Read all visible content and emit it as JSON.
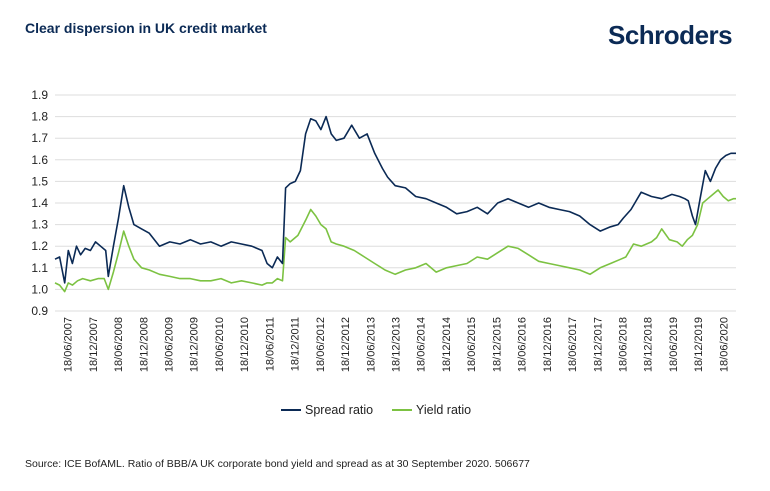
{
  "title": "Clear dispersion in UK credit market",
  "brand": "Schroders",
  "source": "Source: ICE BofAML. Ratio of BBB/A UK corporate bond yield and spread as at 30 September 2020. 506677",
  "colors": {
    "spread": "#0b2a55",
    "yield": "#7cc242",
    "grid": "#dddddd",
    "text": "#222222"
  },
  "chart_data": {
    "type": "line",
    "title": "Clear dispersion in UK credit market",
    "xlabel": "",
    "ylabel": "",
    "ylim": [
      0.9,
      1.9
    ],
    "yticks": [
      "1.9",
      "1.8",
      "1.7",
      "1.6",
      "1.5",
      "1.4",
      "1.3",
      "1.2",
      "1.1",
      "1.0",
      "0.9"
    ],
    "xlim": [
      2007.46,
      2020.75
    ],
    "xtick_labels": [
      "18/06/2007",
      "18/12/2007",
      "18/06/2008",
      "18/12/2008",
      "18/06/2009",
      "18/12/2009",
      "18/06/2010",
      "18/12/2010",
      "18/06/2011",
      "18/12/2011",
      "18/06/2012",
      "18/12/2012",
      "18/06/2013",
      "18/12/2013",
      "18/06/2014",
      "18/12/2014",
      "18/06/2015",
      "18/12/2015",
      "18/06/2016",
      "18/12/2016",
      "18/06/2017",
      "18/12/2017",
      "18/06/2018",
      "18/12/2018",
      "18/06/2019",
      "18/12/2019",
      "18/06/2020"
    ],
    "grid": true,
    "legend_position": "bottom-center",
    "series": [
      {
        "name": "Spread ratio",
        "x": [
          2007.46,
          2007.55,
          2007.65,
          2007.72,
          2007.8,
          2007.88,
          2007.96,
          2008.05,
          2008.15,
          2008.25,
          2008.35,
          2008.45,
          2008.5,
          2008.6,
          2008.7,
          2008.8,
          2008.9,
          2009.0,
          2009.15,
          2009.3,
          2009.5,
          2009.7,
          2009.9,
          2010.1,
          2010.3,
          2010.5,
          2010.7,
          2010.9,
          2011.1,
          2011.3,
          2011.5,
          2011.6,
          2011.7,
          2011.8,
          2011.9,
          2011.96,
          2012.05,
          2012.15,
          2012.25,
          2012.35,
          2012.45,
          2012.55,
          2012.65,
          2012.75,
          2012.85,
          2012.95,
          2013.1,
          2013.25,
          2013.4,
          2013.55,
          2013.7,
          2013.85,
          2013.95,
          2014.1,
          2014.3,
          2014.5,
          2014.7,
          2014.9,
          2015.1,
          2015.3,
          2015.5,
          2015.7,
          2015.9,
          2016.1,
          2016.3,
          2016.5,
          2016.7,
          2016.9,
          2017.1,
          2017.3,
          2017.5,
          2017.7,
          2017.9,
          2018.1,
          2018.3,
          2018.45,
          2018.55,
          2018.7,
          2018.9,
          2019.1,
          2019.3,
          2019.5,
          2019.65,
          2019.75,
          2019.82,
          2019.9,
          2019.96,
          2020.05,
          2020.15,
          2020.25,
          2020.35,
          2020.45,
          2020.55,
          2020.65,
          2020.75
        ],
        "values": [
          1.14,
          1.15,
          1.03,
          1.18,
          1.12,
          1.2,
          1.16,
          1.19,
          1.18,
          1.22,
          1.2,
          1.18,
          1.06,
          1.2,
          1.33,
          1.48,
          1.38,
          1.3,
          1.28,
          1.26,
          1.2,
          1.22,
          1.21,
          1.23,
          1.21,
          1.22,
          1.2,
          1.22,
          1.21,
          1.2,
          1.18,
          1.12,
          1.1,
          1.15,
          1.12,
          1.47,
          1.49,
          1.5,
          1.55,
          1.72,
          1.79,
          1.78,
          1.74,
          1.8,
          1.72,
          1.69,
          1.7,
          1.76,
          1.7,
          1.72,
          1.63,
          1.56,
          1.52,
          1.48,
          1.47,
          1.43,
          1.42,
          1.4,
          1.38,
          1.35,
          1.36,
          1.38,
          1.35,
          1.4,
          1.42,
          1.4,
          1.38,
          1.4,
          1.38,
          1.37,
          1.36,
          1.34,
          1.3,
          1.27,
          1.29,
          1.3,
          1.33,
          1.37,
          1.45,
          1.43,
          1.42,
          1.44,
          1.43,
          1.42,
          1.41,
          1.34,
          1.3,
          1.42,
          1.55,
          1.5,
          1.56,
          1.6,
          1.62,
          1.63,
          1.63
        ]
      },
      {
        "name": "Yield ratio",
        "x": [
          2007.46,
          2007.55,
          2007.65,
          2007.72,
          2007.8,
          2007.9,
          2008.0,
          2008.15,
          2008.3,
          2008.42,
          2008.5,
          2008.6,
          2008.7,
          2008.8,
          2008.9,
          2009.0,
          2009.15,
          2009.3,
          2009.5,
          2009.7,
          2009.9,
          2010.1,
          2010.3,
          2010.5,
          2010.7,
          2010.9,
          2011.1,
          2011.3,
          2011.5,
          2011.6,
          2011.7,
          2011.8,
          2011.9,
          2011.96,
          2012.05,
          2012.2,
          2012.35,
          2012.45,
          2012.55,
          2012.65,
          2012.75,
          2012.85,
          2012.95,
          2013.1,
          2013.3,
          2013.5,
          2013.7,
          2013.9,
          2014.1,
          2014.3,
          2014.5,
          2014.7,
          2014.9,
          2015.1,
          2015.3,
          2015.5,
          2015.7,
          2015.9,
          2016.1,
          2016.3,
          2016.5,
          2016.7,
          2016.9,
          2017.1,
          2017.3,
          2017.5,
          2017.7,
          2017.9,
          2018.1,
          2018.3,
          2018.5,
          2018.6,
          2018.75,
          2018.9,
          2019.1,
          2019.2,
          2019.3,
          2019.45,
          2019.6,
          2019.7,
          2019.8,
          2019.9,
          2020.0,
          2020.1,
          2020.2,
          2020.3,
          2020.4,
          2020.5,
          2020.6,
          2020.7,
          2020.75
        ],
        "values": [
          1.03,
          1.02,
          0.99,
          1.03,
          1.02,
          1.04,
          1.05,
          1.04,
          1.05,
          1.05,
          1.0,
          1.08,
          1.17,
          1.27,
          1.2,
          1.14,
          1.1,
          1.09,
          1.07,
          1.06,
          1.05,
          1.05,
          1.04,
          1.04,
          1.05,
          1.03,
          1.04,
          1.03,
          1.02,
          1.03,
          1.03,
          1.05,
          1.04,
          1.24,
          1.22,
          1.25,
          1.32,
          1.37,
          1.34,
          1.3,
          1.28,
          1.22,
          1.21,
          1.2,
          1.18,
          1.15,
          1.12,
          1.09,
          1.07,
          1.09,
          1.1,
          1.12,
          1.08,
          1.1,
          1.11,
          1.12,
          1.15,
          1.14,
          1.17,
          1.2,
          1.19,
          1.16,
          1.13,
          1.12,
          1.11,
          1.1,
          1.09,
          1.07,
          1.1,
          1.12,
          1.14,
          1.15,
          1.21,
          1.2,
          1.22,
          1.24,
          1.28,
          1.23,
          1.22,
          1.2,
          1.23,
          1.25,
          1.3,
          1.4,
          1.42,
          1.44,
          1.46,
          1.43,
          1.41,
          1.42,
          1.42
        ]
      }
    ]
  }
}
